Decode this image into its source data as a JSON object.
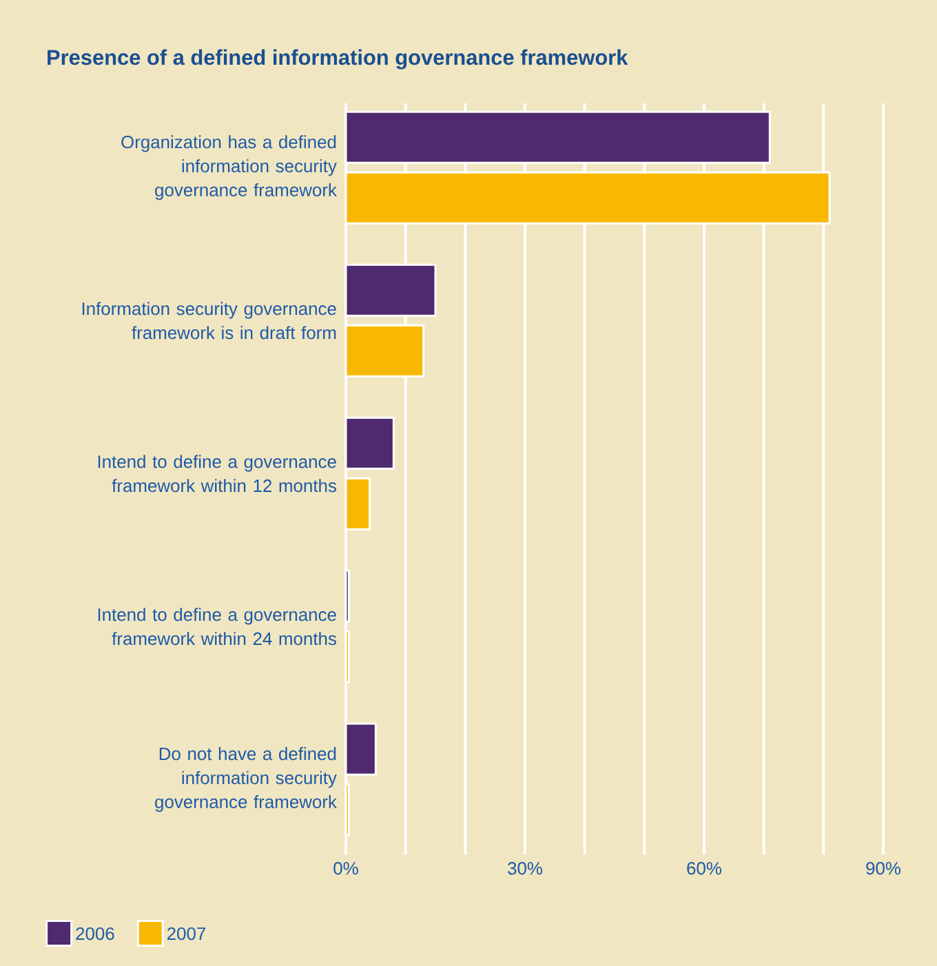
{
  "chart_data": {
    "type": "bar",
    "orientation": "horizontal",
    "title": "Presence of a defined information governance framework",
    "categories": [
      "Organization has a defined information security governance framework",
      "Information security governance framework is in draft form",
      "Intend to define a governance framework within 12 months",
      "Intend to define a governance framework within 24 months",
      "Do not have a defined information security governance framework"
    ],
    "series": [
      {
        "name": "2006",
        "color": "#4f2a6e",
        "values": [
          71,
          15,
          8,
          0.5,
          5
        ]
      },
      {
        "name": "2007",
        "color": "#f8b800",
        "values": [
          81,
          13,
          4,
          0.5,
          0.5
        ]
      }
    ],
    "xlim": [
      0,
      90
    ],
    "xticks": [
      {
        "value": 0,
        "label": "0%"
      },
      {
        "value": 10,
        "label": null
      },
      {
        "value": 20,
        "label": null
      },
      {
        "value": 30,
        "label": "30%"
      },
      {
        "value": 40,
        "label": null
      },
      {
        "value": 50,
        "label": null
      },
      {
        "value": 60,
        "label": "60%"
      },
      {
        "value": 70,
        "label": null
      },
      {
        "value": 80,
        "label": null
      },
      {
        "value": 90,
        "label": "90%"
      }
    ],
    "grid": "x",
    "legend": "bottom"
  }
}
